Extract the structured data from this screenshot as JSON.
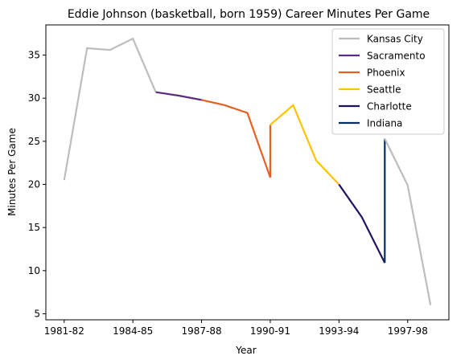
{
  "chart_data": {
    "type": "line",
    "title": "Eddie Johnson (basketball, born 1959) Career Minutes Per Game",
    "xlabel": "Year",
    "ylabel": "Minutes Per Game",
    "x_tick_labels": [
      "1981-82",
      "1984-85",
      "1987-88",
      "1990-91",
      "1993-94",
      "1997-98"
    ],
    "x_tick_positions": [
      0,
      3,
      6,
      9,
      12,
      15
    ],
    "y_ticks": [
      5,
      10,
      15,
      20,
      25,
      30,
      35
    ],
    "xlim": [
      -0.8,
      16.8
    ],
    "ylim": [
      4.3,
      38.5
    ],
    "grid": false,
    "legend_position": "top-right",
    "series": [
      {
        "name": "Kansas City",
        "color": "#bdbdbd",
        "points": [
          [
            0,
            20.5
          ],
          [
            1,
            35.8
          ],
          [
            2,
            35.6
          ],
          [
            3,
            36.9
          ],
          [
            4,
            30.7
          ]
        ]
      },
      {
        "name": "Sacramento",
        "color": "#5a2d81",
        "points": [
          [
            4,
            30.7
          ],
          [
            5,
            30.3
          ],
          [
            6,
            29.8
          ]
        ]
      },
      {
        "name": "Phoenix",
        "color": "#e56020",
        "points": [
          [
            6,
            29.8
          ],
          [
            7,
            29.2
          ],
          [
            8,
            28.3
          ],
          [
            9,
            20.8
          ],
          [
            9,
            26.9
          ]
        ]
      },
      {
        "name": "Seattle",
        "color": "#ffc200",
        "points": [
          [
            9,
            26.9
          ],
          [
            10,
            29.2
          ],
          [
            11,
            22.8
          ],
          [
            12,
            20.0
          ]
        ]
      },
      {
        "name": "Charlotte",
        "color": "#1d1160",
        "points": [
          [
            12,
            20.0
          ],
          [
            13,
            16.2
          ],
          [
            14,
            10.9
          ]
        ]
      },
      {
        "name": "Indiana",
        "color": "#002d62",
        "points": [
          [
            14,
            10.9
          ],
          [
            14,
            25.3
          ]
        ]
      },
      {
        "name": "Kansas City",
        "color": "#bdbdbd",
        "legend": false,
        "points": [
          [
            14,
            25.3
          ],
          [
            15,
            19.9
          ],
          [
            16,
            6.0
          ]
        ]
      }
    ]
  }
}
